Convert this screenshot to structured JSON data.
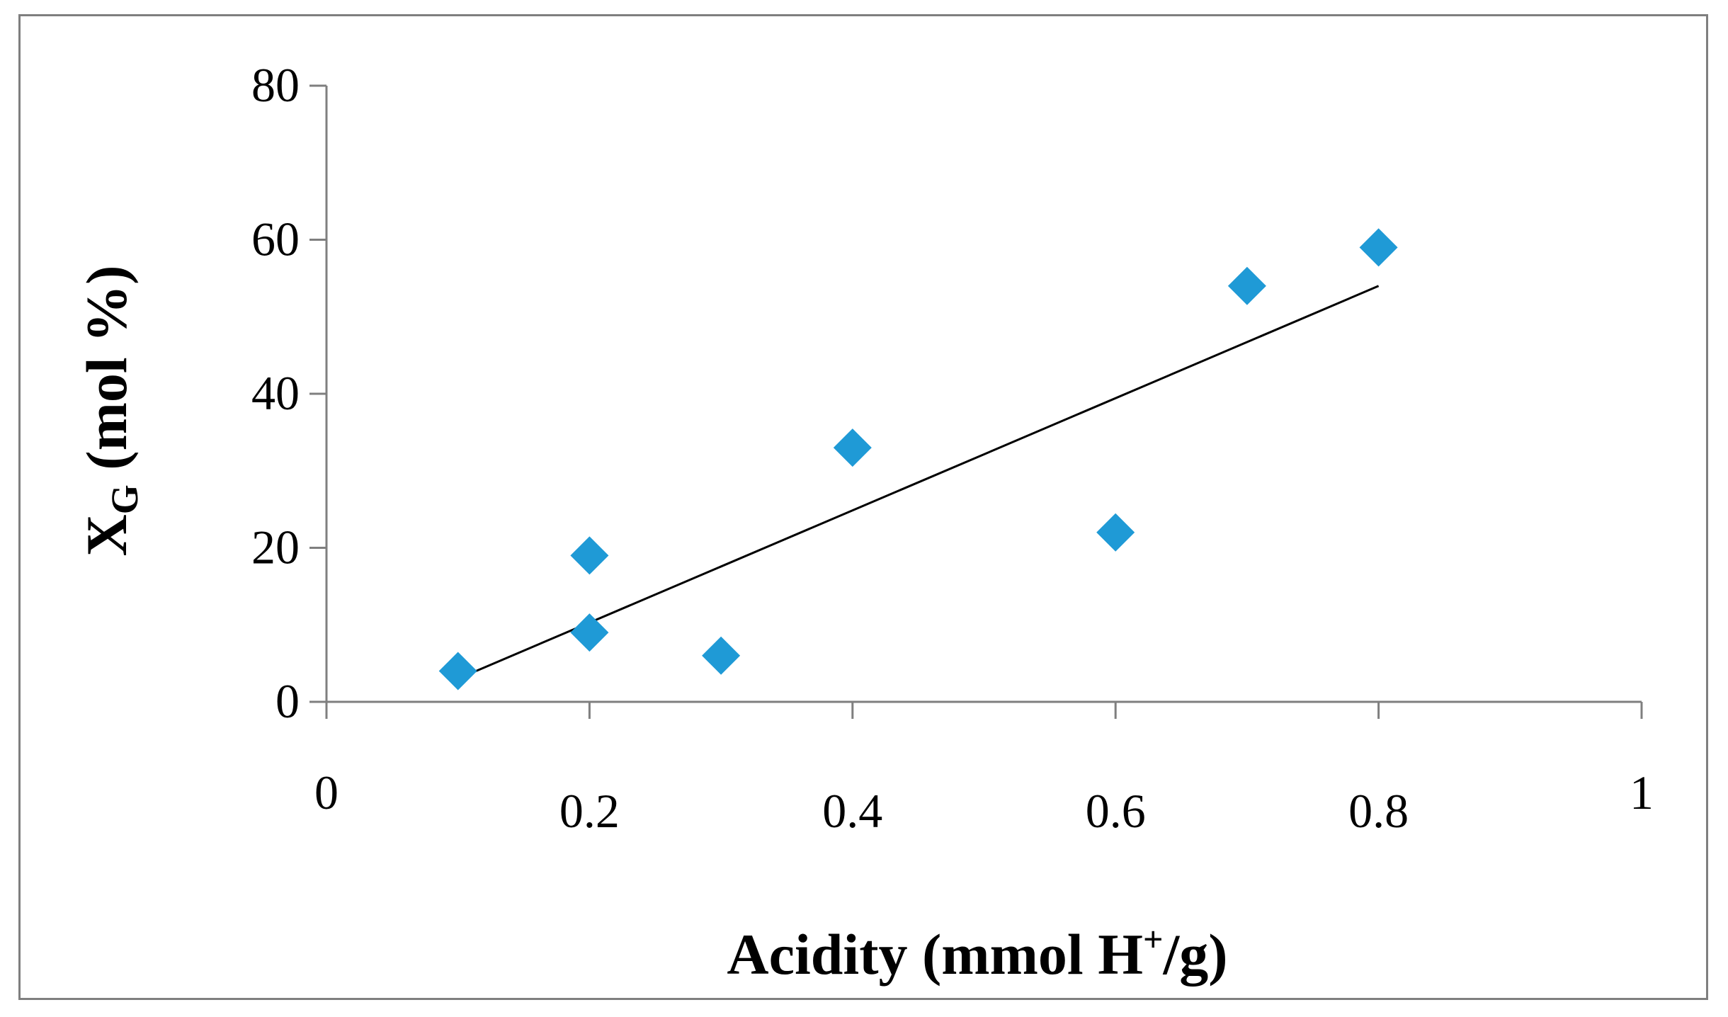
{
  "chart_data": {
    "type": "scatter",
    "title": "",
    "xlabel": "Acidity (mmol H",
    "xlabel_superscript": "+",
    "xlabel_suffix": "/g)",
    "ylabel": "X",
    "ylabel_subscript": "G",
    "ylabel_suffix": " (mol %)",
    "xlim": [
      0,
      1
    ],
    "ylim": [
      0,
      80
    ],
    "xticks": [
      "0",
      "0.2",
      "0.4",
      "0.6",
      "0.8",
      "1"
    ],
    "yticks": [
      "0",
      "20",
      "40",
      "60",
      "80"
    ],
    "grid": false,
    "legend": "none",
    "series": [
      {
        "name": "data",
        "color": "#1f9ad6",
        "marker": "diamond",
        "x": [
          0.1,
          0.2,
          0.2,
          0.3,
          0.4,
          0.6,
          0.7,
          0.8
        ],
        "y": [
          4,
          9,
          19,
          6,
          33,
          22,
          54,
          59
        ]
      }
    ],
    "trendline": {
      "type": "linear",
      "color": "#000000",
      "x": [
        0.1,
        0.8
      ],
      "y": [
        3,
        54
      ]
    }
  }
}
